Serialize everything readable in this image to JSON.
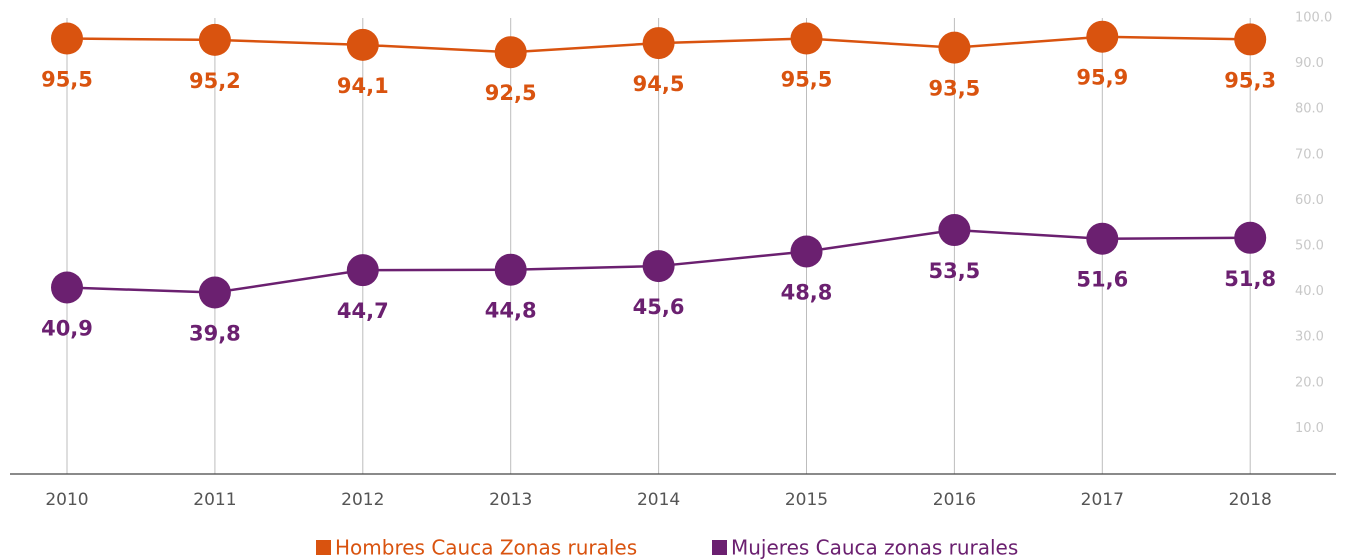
{
  "chart_data": {
    "type": "line",
    "categories": [
      "2010",
      "2011",
      "2012",
      "2013",
      "2014",
      "2015",
      "2016",
      "2017",
      "2018"
    ],
    "series": [
      {
        "name": "Hombres Cauca Zonas rurales",
        "color": "#d9530f",
        "values": [
          95.5,
          95.2,
          94.1,
          92.5,
          94.5,
          95.5,
          93.5,
          95.9,
          95.3
        ],
        "value_labels": [
          "95,5",
          "95,2",
          "94,1",
          "92,5",
          "94,5",
          "95,5",
          "93,5",
          "95,9",
          "95,3"
        ]
      },
      {
        "name": "Mujeres Cauca zonas rurales",
        "color": "#6b2070",
        "values": [
          40.9,
          39.8,
          44.7,
          44.8,
          45.6,
          48.8,
          53.5,
          51.6,
          51.8
        ],
        "value_labels": [
          "40,9",
          "39,8",
          "44,7",
          "44,8",
          "45,6",
          "48,8",
          "53,5",
          "51,6",
          "51,8"
        ]
      }
    ],
    "ylim": [
      0,
      100
    ],
    "yticks": [
      {
        "value": 10,
        "label": "10.0"
      },
      {
        "value": 20,
        "label": "20.0"
      },
      {
        "value": 30,
        "label": "30.0"
      },
      {
        "value": 40,
        "label": "40.0"
      },
      {
        "value": 50,
        "label": "50.0"
      },
      {
        "value": 60,
        "label": "60.0"
      },
      {
        "value": 70,
        "label": "70.0"
      },
      {
        "value": 80,
        "label": "80.0"
      },
      {
        "value": 90,
        "label": "90.0"
      },
      {
        "value": 100,
        "label": "100.0"
      }
    ],
    "grid": true,
    "legend": "bottom"
  }
}
